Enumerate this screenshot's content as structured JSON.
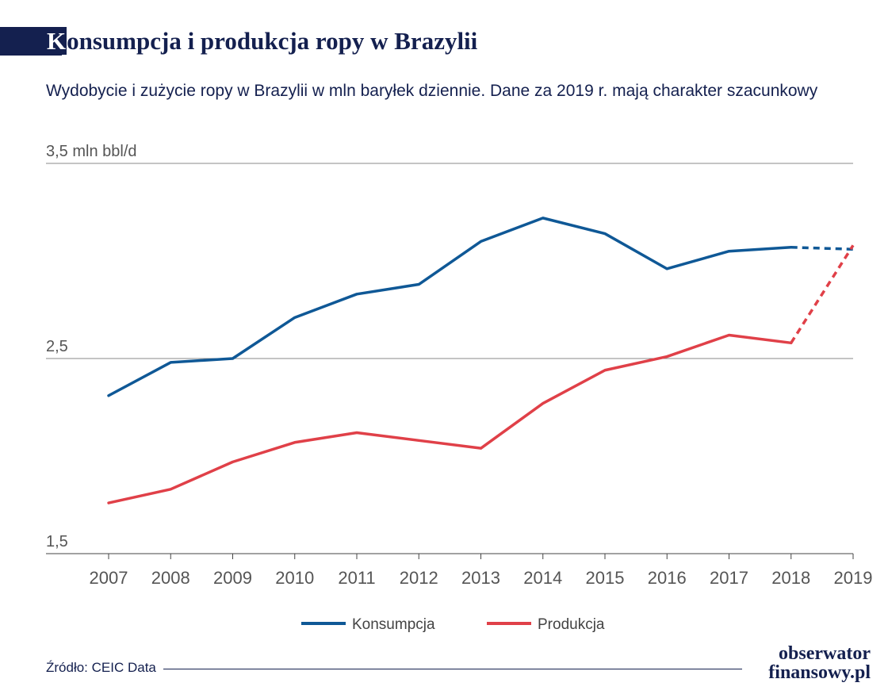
{
  "header": {
    "title_first_letter": "K",
    "title_rest": "onsumpcja i produkcja ropy w Brazylii",
    "subtitle": "Wydobycie i zużycie ropy w Brazylii w mln baryłek dziennie. Dane za 2019 r. mają charakter szacunkowy"
  },
  "chart_data": {
    "type": "line",
    "title": "Konsumpcja i produkcja ropy w Brazylii",
    "subtitle": "Wydobycie i zużycie ropy w Brazylii w mln baryłek dziennie. Dane za 2019 r. mają charakter szacunkowy",
    "x": [
      "2007",
      "2008",
      "2009",
      "2010",
      "2011",
      "2012",
      "2013",
      "2014",
      "2015",
      "2016",
      "2017",
      "2018",
      "2019"
    ],
    "ylim": [
      1.5,
      3.5
    ],
    "ytick_values": [
      1.5,
      2.5,
      3.5
    ],
    "ytick_labels": [
      "1,5",
      "2,5",
      "3,5 mln bbl/d"
    ],
    "estimated_from_index": 11,
    "series": [
      {
        "name": "Konsumpcja",
        "color": "#0f5896",
        "values": [
          2.31,
          2.48,
          2.5,
          2.71,
          2.83,
          2.88,
          3.1,
          3.22,
          3.14,
          2.96,
          3.05,
          3.07,
          3.06
        ]
      },
      {
        "name": "Produkcja",
        "color": "#e04048",
        "values": [
          1.76,
          1.83,
          1.97,
          2.07,
          2.12,
          2.08,
          2.04,
          2.27,
          2.44,
          2.51,
          2.62,
          2.58,
          3.08
        ]
      }
    ],
    "grid": true,
    "legend_position": "bottom-center"
  },
  "footer": {
    "source": "Źródło: CEIC Data",
    "logo_line1": "obserwator",
    "logo_line2": "finansowy.pl"
  }
}
